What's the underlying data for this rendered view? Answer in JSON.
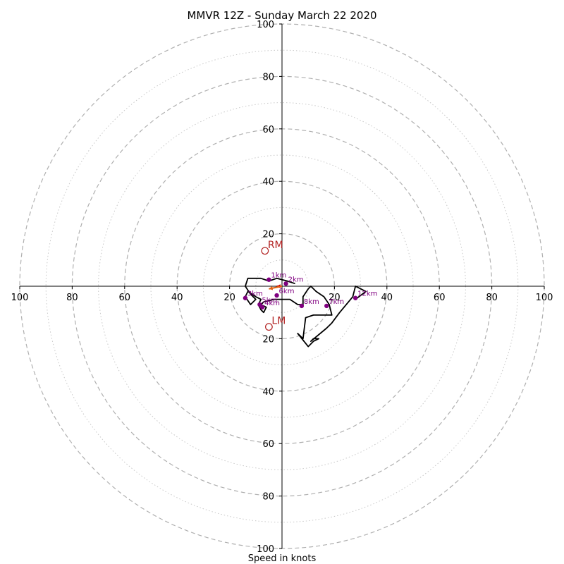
{
  "chart_data": {
    "type": "hodograph",
    "title": "MMVR 12Z - Sunday March 22 2020",
    "xlabel": "Speed in knots",
    "ylabel": "",
    "range": 100,
    "major_rings": [
      20,
      40,
      60,
      80,
      100
    ],
    "minor_rings": [
      10,
      30,
      50,
      70,
      90
    ],
    "x_ticks": [
      {
        "v": -100,
        "label": "100"
      },
      {
        "v": -80,
        "label": "80"
      },
      {
        "v": -60,
        "label": "60"
      },
      {
        "v": -40,
        "label": "40"
      },
      {
        "v": -20,
        "label": "20"
      },
      {
        "v": 20,
        "label": "20"
      },
      {
        "v": 40,
        "label": "40"
      },
      {
        "v": 60,
        "label": "60"
      },
      {
        "v": 80,
        "label": "80"
      },
      {
        "v": 100,
        "label": "100"
      }
    ],
    "y_ticks": [
      {
        "v": 100,
        "label": "100"
      },
      {
        "v": 80,
        "label": "80"
      },
      {
        "v": 60,
        "label": "60"
      },
      {
        "v": 40,
        "label": "40"
      },
      {
        "v": 20,
        "label": "20"
      },
      {
        "v": -20,
        "label": "20"
      },
      {
        "v": -40,
        "label": "40"
      },
      {
        "v": -60,
        "label": "60"
      },
      {
        "v": -80,
        "label": "80"
      },
      {
        "v": -100,
        "label": "100"
      }
    ],
    "hodograph_line": {
      "color": "#000000",
      "points": [
        [
          5,
          1
        ],
        [
          2,
          2
        ],
        [
          -2,
          3
        ],
        [
          -5,
          2
        ],
        [
          -8,
          3
        ],
        [
          -13,
          3
        ],
        [
          -14,
          0
        ],
        [
          -12,
          -3
        ],
        [
          -10,
          -5
        ],
        [
          -12,
          -7
        ],
        [
          -14,
          -4
        ],
        [
          -13,
          -2
        ],
        [
          -10,
          -4
        ],
        [
          -8,
          -5
        ],
        [
          -9,
          -7
        ],
        [
          -8,
          -9
        ],
        [
          -7,
          -10
        ],
        [
          -6,
          -8
        ],
        [
          -8,
          -7
        ],
        [
          -7,
          -6
        ],
        [
          -3,
          -5
        ],
        [
          3,
          -5
        ],
        [
          6,
          -7
        ],
        [
          8,
          -7
        ],
        [
          8,
          -4
        ],
        [
          10,
          -1
        ],
        [
          11,
          0
        ],
        [
          13,
          -2
        ],
        [
          16,
          -4
        ],
        [
          18,
          -7
        ],
        [
          19,
          -11
        ],
        [
          12,
          -11
        ],
        [
          9,
          -12
        ],
        [
          8,
          -20
        ],
        [
          6,
          -18
        ],
        [
          10,
          -23
        ],
        [
          12,
          -21
        ],
        [
          14,
          -20
        ],
        [
          12,
          -20
        ],
        [
          11,
          -21
        ],
        [
          17,
          -16
        ],
        [
          19,
          -14
        ],
        [
          22,
          -10
        ],
        [
          27,
          -4
        ],
        [
          28,
          0
        ],
        [
          30,
          -1
        ],
        [
          32,
          -2
        ],
        [
          28,
          -5
        ]
      ]
    },
    "height_points": [
      {
        "label": "1km",
        "u": -5,
        "v": 2.5
      },
      {
        "label": "2km",
        "u": 1.5,
        "v": 1
      },
      {
        "label": "3km",
        "u": -14,
        "v": -4.5
      },
      {
        "label": "4km",
        "u": -7.5,
        "v": -8
      },
      {
        "label": "5km",
        "u": -8.5,
        "v": -7
      },
      {
        "label": "6km",
        "u": -2,
        "v": -3.5
      },
      {
        "label": "7km",
        "u": 17,
        "v": -7.5
      },
      {
        "label": "8km",
        "u": 7.5,
        "v": -7.5
      },
      {
        "label": "12km",
        "u": 28,
        "v": -4.5
      }
    ],
    "storm_motion": [
      {
        "label": "RM",
        "u": -6.5,
        "v": 13.5
      },
      {
        "label": "LM",
        "u": -5,
        "v": -15.5
      }
    ],
    "mean_wind_arrows": [
      {
        "u": -2,
        "v": 0,
        "color": "#cc0000"
      },
      {
        "u": -5,
        "v": -1,
        "color": "#e06010"
      }
    ],
    "colors": {
      "major_ring": "#b0b0b0",
      "minor_ring": "#c8c8c8",
      "km_point": "#800080",
      "storm_marker": "#b22222"
    },
    "grid": true
  }
}
